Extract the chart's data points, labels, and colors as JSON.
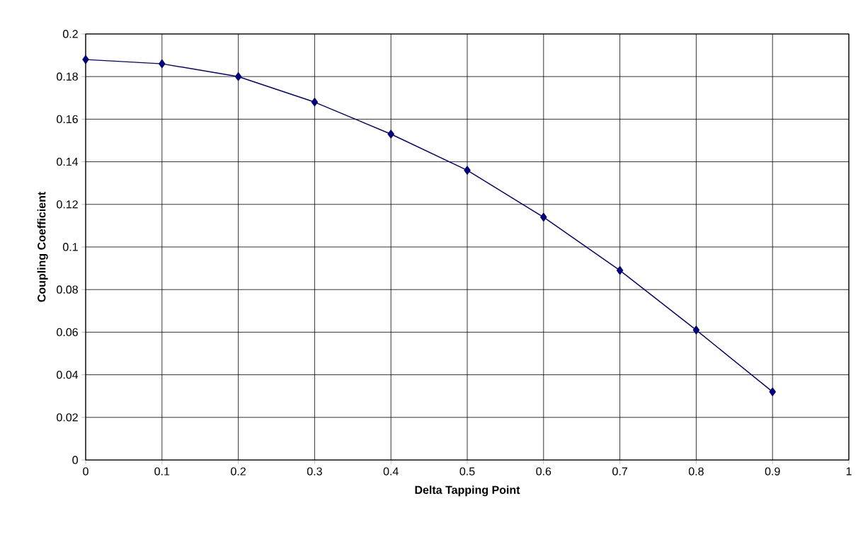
{
  "chart_data": {
    "type": "line",
    "xlabel": "Delta Tapping Point",
    "ylabel": "Coupling Coefficient",
    "x": [
      0,
      0.1,
      0.2,
      0.3,
      0.4,
      0.5,
      0.6,
      0.7,
      0.8,
      0.9
    ],
    "series": [
      {
        "color": "#000080",
        "values": [
          0.188,
          0.186,
          0.18,
          0.168,
          0.153,
          0.136,
          0.114,
          0.089,
          0.061,
          0.032
        ]
      }
    ],
    "xlim": [
      0,
      1
    ],
    "xticks": [
      0,
      0.1,
      0.2,
      0.3,
      0.4,
      0.5,
      0.6,
      0.7,
      0.8,
      0.9,
      1
    ],
    "ylim": [
      0,
      0.2
    ],
    "yticks": [
      0,
      0.02,
      0.04,
      0.06,
      0.08,
      0.1,
      0.12,
      0.14,
      0.16,
      0.18,
      0.2
    ],
    "grid": true,
    "marker": "diamond",
    "line_style": "solid"
  }
}
